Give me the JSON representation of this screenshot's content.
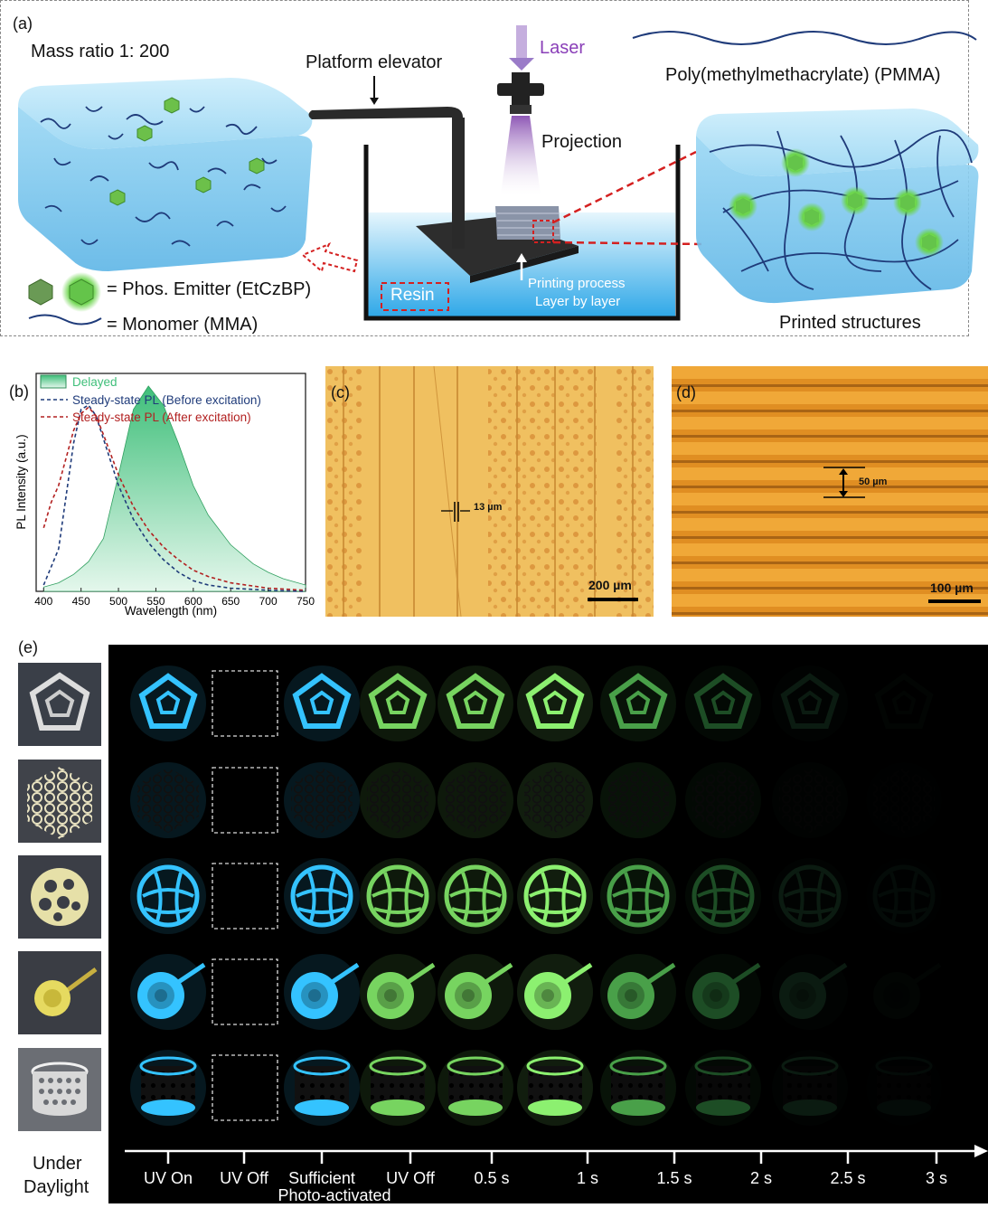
{
  "panel_a": {
    "label": "(a)",
    "mass_ratio": "Mass ratio 1: 200",
    "platform_elevator": "Platform elevator",
    "laser": "Laser",
    "projection": "Projection",
    "pmma": "Poly(methylmethacrylate) (PMMA)",
    "resin": "Resin",
    "printing_process": "Printing process",
    "layer_by_layer": "Layer  by layer",
    "phos_emitter": "= Phos. Emitter (EtCzBP)",
    "monomer": "= Monomer (MMA)",
    "printed_structures": "Printed structures"
  },
  "panel_b": {
    "label": "(b)",
    "legend_delayed": "Delayed",
    "legend_before": "Steady-state PL (Before excitation)",
    "legend_after": "Steady-state PL (After excitation)",
    "ylabel": "PL Intensity (a.u.)",
    "xlabel": "Wavelength (nm)",
    "xticks": [
      "400",
      "450",
      "500",
      "550",
      "600",
      "650",
      "700",
      "750"
    ]
  },
  "panel_c": {
    "label": "(c)",
    "measure": "13 µm",
    "scale": "200 µm"
  },
  "panel_d": {
    "label": "(d)",
    "measure": "50 µm",
    "scale": "100 µm"
  },
  "panel_e": {
    "label": "(e)",
    "daylight_line1": "Under",
    "daylight_line2": "Daylight",
    "timeline": [
      "UV On",
      "UV Off",
      "Sufficient",
      "UV Off",
      "0.5 s",
      "1 s",
      "1.5 s",
      "2 s",
      "2.5 s",
      "3 s"
    ],
    "photo_activated": "Photo-activated"
  },
  "colors": {
    "cyan": "#2fb6ef",
    "green": "#5fd45a",
    "red_dash": "#d42020",
    "navy": "#1f3b7a"
  },
  "chart_data": {
    "type": "line",
    "xlabel": "Wavelength (nm)",
    "ylabel": "PL Intensity (a.u.)",
    "xlim": [
      390,
      750
    ],
    "series": [
      {
        "name": "Delayed",
        "style": "area",
        "x": [
          400,
          420,
          440,
          460,
          480,
          500,
          520,
          540,
          560,
          580,
          600,
          620,
          650,
          680,
          700,
          720,
          750
        ],
        "y": [
          0.02,
          0.04,
          0.08,
          0.14,
          0.25,
          0.55,
          0.86,
          0.97,
          0.88,
          0.7,
          0.5,
          0.36,
          0.22,
          0.13,
          0.09,
          0.06,
          0.03
        ]
      },
      {
        "name": "Steady-state PL (Before excitation)",
        "style": "dashed",
        "x": [
          400,
          420,
          440,
          450,
          460,
          470,
          480,
          500,
          520,
          540,
          560,
          580,
          600,
          620,
          650,
          700,
          750
        ],
        "y": [
          0.03,
          0.2,
          0.7,
          0.86,
          0.88,
          0.83,
          0.72,
          0.5,
          0.34,
          0.23,
          0.15,
          0.09,
          0.05,
          0.03,
          0.015,
          0.005,
          0.0
        ]
      },
      {
        "name": "Steady-state PL (After excitation)",
        "style": "dashed",
        "x": [
          400,
          410,
          420,
          440,
          450,
          460,
          470,
          480,
          500,
          520,
          540,
          560,
          580,
          600,
          620,
          650,
          700,
          750
        ],
        "y": [
          0.3,
          0.42,
          0.5,
          0.76,
          0.84,
          0.87,
          0.83,
          0.74,
          0.55,
          0.4,
          0.29,
          0.21,
          0.15,
          0.1,
          0.07,
          0.04,
          0.015,
          0.005
        ]
      }
    ]
  }
}
